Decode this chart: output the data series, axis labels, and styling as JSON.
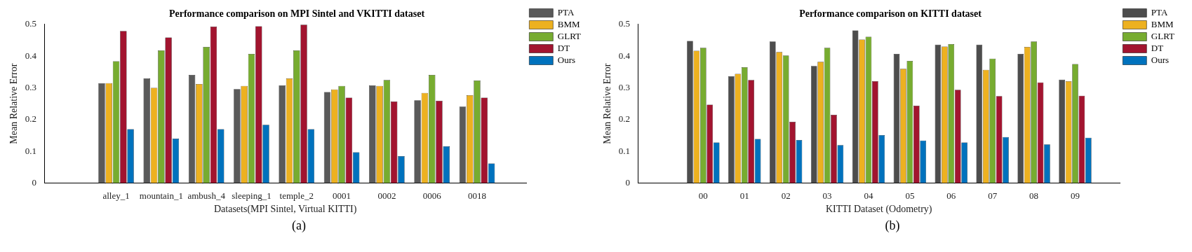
{
  "chart_data": [
    {
      "type": "bar",
      "title": "Performance comparison on MPI Sintel and VKITTI dataset",
      "xlabel": "Datasets(MPI Sintel, Virtual KITTI)",
      "ylabel": "Mean Relative Error",
      "categories": [
        "alley_1",
        "mountain_1",
        "ambush_4",
        "sleeping_1",
        "temple_2",
        "0001",
        "0002",
        "0006",
        "0018"
      ],
      "series": [
        {
          "name": "PTA",
          "color": "#5a5a5a",
          "values": [
            0.315,
            0.33,
            0.341,
            0.296,
            0.308,
            0.287,
            0.308,
            0.261,
            0.241
          ]
        },
        {
          "name": "BMM",
          "color": "#edb120",
          "values": [
            0.315,
            0.3,
            0.312,
            0.306,
            0.33,
            0.295,
            0.306,
            0.284,
            0.277
          ]
        },
        {
          "name": "GLRT",
          "color": "#77ac30",
          "values": [
            0.384,
            0.418,
            0.429,
            0.407,
            0.418,
            0.306,
            0.325,
            0.341,
            0.323
          ]
        },
        {
          "name": "DT",
          "color": "#a2142f",
          "values": [
            0.479,
            0.459,
            0.493,
            0.494,
            0.499,
            0.269,
            0.257,
            0.259,
            0.269
          ]
        },
        {
          "name": "Ours",
          "color": "#0072bd",
          "values": [
            0.17,
            0.14,
            0.17,
            0.184,
            0.17,
            0.097,
            0.085,
            0.116,
            0.062
          ]
        }
      ],
      "ylim": [
        0,
        0.5
      ],
      "yticks": [
        0,
        0.1,
        0.2,
        0.3,
        0.4,
        0.5
      ],
      "legend": "top right",
      "annotations": [
        "(a)"
      ]
    },
    {
      "type": "bar",
      "title": "Performance comparison on KITTI dataset",
      "xlabel": "KITTI Dataset (Odometry)",
      "ylabel": "Mean Relative Error",
      "categories": [
        "00",
        "01",
        "02",
        "03",
        "04",
        "05",
        "06",
        "07",
        "08",
        "09"
      ],
      "series": [
        {
          "name": "PTA",
          "color": "#4d4d4d",
          "values": [
            0.448,
            0.337,
            0.446,
            0.369,
            0.481,
            0.407,
            0.436,
            0.436,
            0.407,
            0.326
          ]
        },
        {
          "name": "BMM",
          "color": "#edb120",
          "values": [
            0.417,
            0.344,
            0.413,
            0.382,
            0.452,
            0.36,
            0.43,
            0.357,
            0.429,
            0.321
          ]
        },
        {
          "name": "GLRT",
          "color": "#77ac30",
          "values": [
            0.426,
            0.365,
            0.402,
            0.426,
            0.461,
            0.385,
            0.438,
            0.392,
            0.446,
            0.375
          ]
        },
        {
          "name": "DT",
          "color": "#a2142f",
          "values": [
            0.247,
            0.325,
            0.193,
            0.215,
            0.321,
            0.244,
            0.294,
            0.274,
            0.317,
            0.275
          ]
        },
        {
          "name": "Ours",
          "color": "#0072bd",
          "values": [
            0.128,
            0.139,
            0.136,
            0.12,
            0.151,
            0.134,
            0.128,
            0.145,
            0.122,
            0.143
          ]
        }
      ],
      "ylim": [
        0,
        0.5
      ],
      "yticks": [
        0,
        0.1,
        0.2,
        0.3,
        0.4,
        0.5
      ],
      "legend": "top right",
      "annotations": [
        "(b)"
      ]
    }
  ]
}
